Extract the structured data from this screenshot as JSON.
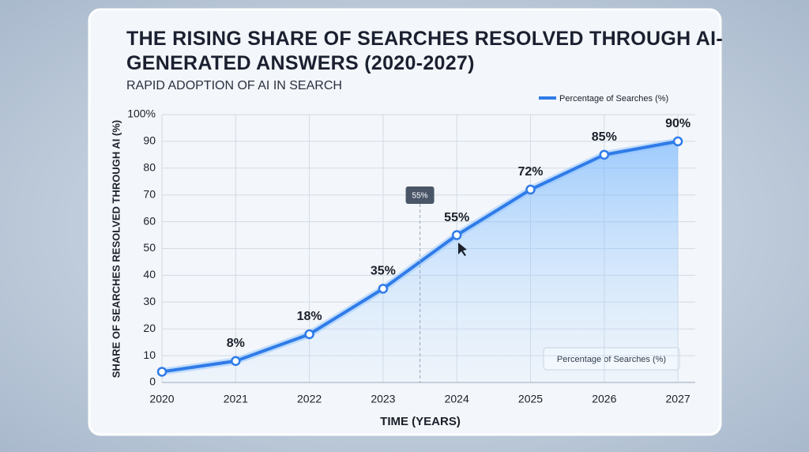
{
  "chart_data": {
    "type": "line",
    "title": "THE RISING SHARE OF SEARCHES RESOLVED THROUGH AI-GENERATED ANSWERS (2020-2027)",
    "subtitle": "RAPID ADOPTION OF AI IN SEARCH",
    "x_label": "TIME (YEARS)",
    "y_label": "SHARE OF SEARCHES RESOLVED THROUGH AI (%)",
    "categories": [
      "2020",
      "2021",
      "2022",
      "2023",
      "2024",
      "2025",
      "2026",
      "2027"
    ],
    "series": [
      {
        "name": "Percentage of Searches (%)",
        "color": "#2f7be8",
        "values": [
          4,
          8,
          18,
          35,
          55,
          72,
          85,
          90
        ],
        "value_labels": [
          null,
          "8%",
          "18%",
          "35%",
          "55%",
          "72%",
          "85%",
          "90%"
        ]
      }
    ],
    "ylim": [
      0,
      100
    ],
    "yticks": [
      0,
      10,
      20,
      30,
      40,
      50,
      60,
      70,
      80,
      90,
      {
        "value": 100,
        "label": "100%"
      }
    ],
    "grid": true,
    "annotations": [
      {
        "text": "55%"
      }
    ]
  }
}
